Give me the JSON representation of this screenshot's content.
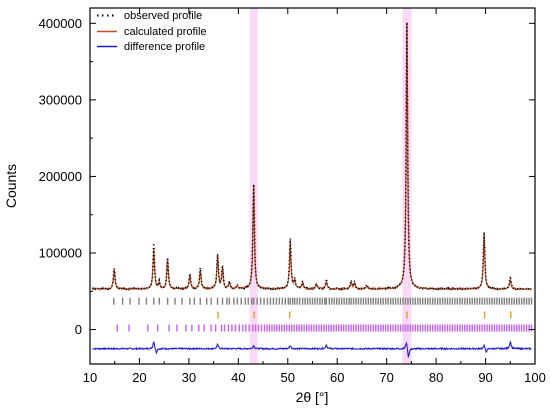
{
  "chart_data": {
    "type": "line",
    "title": "",
    "xlabel": "2θ [°]",
    "ylabel": "Counts",
    "xlim": [
      10,
      100
    ],
    "ylim": [
      -45000,
      420000
    ],
    "x_ticks": [
      10,
      20,
      30,
      40,
      50,
      60,
      70,
      80,
      90,
      100
    ],
    "x_tick_labels": [
      "10",
      "20",
      "30",
      "40",
      "50",
      "60",
      "70",
      "80",
      "90",
      "100"
    ],
    "y_ticks": [
      0,
      100000,
      200000,
      300000,
      400000
    ],
    "y_tick_labels": [
      "0",
      "100000",
      "200000",
      "300000",
      "400000"
    ],
    "grid": false,
    "legend_position": "top-left",
    "colors": {
      "observed": "#000000",
      "calculated": "#c0502a",
      "difference": "#1f1fd0",
      "reflections_phase1": "#808080",
      "reflections_phase2": "#e0a020",
      "reflections_phase3": "#c060f0",
      "highlight": "#f5b8f0"
    },
    "series": [
      {
        "name": "observed profile",
        "style": "dotted",
        "baseline": 53000,
        "peaks": [
          {
            "x": 14.9,
            "y": 80000
          },
          {
            "x": 22.9,
            "y": 112000
          },
          {
            "x": 24.0,
            "y": 62000
          },
          {
            "x": 25.7,
            "y": 93000
          },
          {
            "x": 30.2,
            "y": 72000
          },
          {
            "x": 32.3,
            "y": 80000
          },
          {
            "x": 35.8,
            "y": 98000
          },
          {
            "x": 36.8,
            "y": 82000
          },
          {
            "x": 38.2,
            "y": 62000
          },
          {
            "x": 39.8,
            "y": 58000
          },
          {
            "x": 43.1,
            "y": 190000
          },
          {
            "x": 50.5,
            "y": 118000
          },
          {
            "x": 51.4,
            "y": 65000
          },
          {
            "x": 53.0,
            "y": 62000
          },
          {
            "x": 55.8,
            "y": 60000
          },
          {
            "x": 57.8,
            "y": 67000
          },
          {
            "x": 62.8,
            "y": 64000
          },
          {
            "x": 63.5,
            "y": 62000
          },
          {
            "x": 66.0,
            "y": 58000
          },
          {
            "x": 74.1,
            "y": 402000
          },
          {
            "x": 89.7,
            "y": 127000
          },
          {
            "x": 95.0,
            "y": 70000
          }
        ]
      },
      {
        "name": "calculated profile",
        "style": "solid",
        "baseline": 53000,
        "peaks": [
          {
            "x": 14.9,
            "y": 79000
          },
          {
            "x": 22.9,
            "y": 105000
          },
          {
            "x": 24.0,
            "y": 61000
          },
          {
            "x": 25.7,
            "y": 92000
          },
          {
            "x": 30.2,
            "y": 71000
          },
          {
            "x": 32.3,
            "y": 79000
          },
          {
            "x": 35.8,
            "y": 97000
          },
          {
            "x": 36.8,
            "y": 81000
          },
          {
            "x": 38.2,
            "y": 61000
          },
          {
            "x": 39.8,
            "y": 57000
          },
          {
            "x": 43.1,
            "y": 189000
          },
          {
            "x": 50.5,
            "y": 117000
          },
          {
            "x": 51.4,
            "y": 64000
          },
          {
            "x": 53.0,
            "y": 61000
          },
          {
            "x": 55.8,
            "y": 59000
          },
          {
            "x": 57.8,
            "y": 63000
          },
          {
            "x": 62.8,
            "y": 61000
          },
          {
            "x": 63.5,
            "y": 60000
          },
          {
            "x": 66.0,
            "y": 57000
          },
          {
            "x": 74.1,
            "y": 400000
          },
          {
            "x": 89.7,
            "y": 126000
          },
          {
            "x": 95.0,
            "y": 66000
          }
        ]
      },
      {
        "name": "difference profile",
        "style": "solid",
        "baseline": -25000,
        "peaks": [
          {
            "x": 22.9,
            "y": -15000
          },
          {
            "x": 23.4,
            "y": -31000
          },
          {
            "x": 35.8,
            "y": -20000
          },
          {
            "x": 43.1,
            "y": -21000
          },
          {
            "x": 50.5,
            "y": -21000
          },
          {
            "x": 57.8,
            "y": -20000
          },
          {
            "x": 74.0,
            "y": -15000
          },
          {
            "x": 74.4,
            "y": -37000
          },
          {
            "x": 89.7,
            "y": -20000
          },
          {
            "x": 90.1,
            "y": -30000
          },
          {
            "x": 95.0,
            "y": -16000
          }
        ]
      }
    ],
    "reflection_rows": [
      {
        "y": 37000,
        "color_key": "reflections_phase1",
        "positions": [
          14.8,
          16.6,
          18.1,
          19.9,
          21.4,
          22.9,
          24.0,
          25.7,
          27.2,
          28.6,
          30.2,
          31.1,
          32.3,
          33.6,
          34.5,
          35.8,
          36.8,
          37.7,
          38.2,
          39.1,
          39.8,
          40.6,
          41.4,
          42.0,
          42.7,
          43.1,
          43.8,
          44.5,
          45.2,
          45.9,
          46.5,
          47.1,
          47.7,
          48.3,
          48.9,
          49.5,
          50.1,
          50.5,
          51.0,
          51.4,
          51.9,
          52.4,
          53.0,
          53.5,
          54.0,
          54.5,
          55.0,
          55.5,
          56.0,
          56.5,
          57.0,
          57.5,
          57.8,
          58.4,
          58.9,
          59.4,
          59.9,
          60.4,
          60.9,
          61.4,
          61.9,
          62.4,
          62.8,
          63.3,
          63.8,
          64.3,
          64.8,
          65.3,
          65.8,
          66.3,
          66.8,
          67.3,
          67.8,
          68.3,
          68.8,
          69.3,
          69.8,
          70.3,
          70.8,
          71.3,
          71.8,
          72.3,
          72.8,
          73.3,
          73.8,
          74.3,
          74.8,
          75.3,
          75.8,
          76.3,
          76.8,
          77.3,
          77.8,
          78.3,
          78.8,
          79.3,
          79.8,
          80.3,
          80.8,
          81.3,
          81.8,
          82.3,
          82.8,
          83.3,
          83.8,
          84.3,
          84.8,
          85.3,
          85.8,
          86.3,
          86.8,
          87.3,
          87.8,
          88.3,
          88.8,
          89.3,
          89.8,
          90.3,
          90.8,
          91.3,
          91.8,
          92.3,
          92.8,
          93.3,
          93.8,
          94.3,
          94.8,
          95.3,
          95.8,
          96.3,
          96.8,
          97.3,
          97.8,
          98.3,
          98.8,
          99.3
        ]
      },
      {
        "y": 19000,
        "color_key": "reflections_phase2",
        "positions": [
          35.9,
          43.2,
          50.4,
          74.1,
          89.8,
          95.1
        ]
      },
      {
        "y": 2000,
        "color_key": "reflections_phase3",
        "positions": [
          15.5,
          17.9,
          21.7,
          23.7,
          26.0,
          27.6,
          29.4,
          30.6,
          32.0,
          33.1,
          34.5,
          35.4,
          36.6,
          37.2,
          38.0,
          38.7,
          39.4,
          40.2,
          40.9,
          41.5,
          42.2,
          42.9,
          43.5,
          44.1,
          44.7,
          45.3,
          45.8,
          46.3,
          46.8,
          47.3,
          47.8,
          48.3,
          48.8,
          49.3,
          49.8,
          50.3,
          50.8,
          51.3,
          51.8,
          52.3,
          52.8,
          53.3,
          53.8,
          54.3,
          54.8,
          55.3,
          55.8,
          56.3,
          56.8,
          57.3,
          57.8,
          58.3,
          58.8,
          59.3,
          59.8,
          60.3,
          60.8,
          61.3,
          61.8,
          62.3,
          62.8,
          63.3,
          63.8,
          64.3,
          64.8,
          65.3,
          65.8,
          66.3,
          66.8,
          67.3,
          67.8,
          68.3,
          68.8,
          69.3,
          69.8,
          70.3,
          70.8,
          71.3,
          71.8,
          72.3,
          72.8,
          73.3,
          73.8,
          74.3,
          74.8,
          75.3,
          75.8,
          76.3,
          76.8,
          77.3,
          77.8,
          78.3,
          78.8,
          79.3,
          79.8,
          80.3,
          80.8,
          81.3,
          81.8,
          82.3,
          82.8,
          83.3,
          83.8,
          84.3,
          84.8,
          85.3,
          85.8,
          86.3,
          86.8,
          87.3,
          87.8,
          88.3,
          88.8,
          89.3,
          89.8,
          90.3,
          90.8,
          91.3,
          91.8,
          92.3,
          92.8,
          93.3,
          93.8,
          94.3,
          94.8,
          95.3,
          95.8,
          96.3,
          96.8,
          97.3,
          97.8,
          98.3,
          98.8,
          99.3
        ]
      }
    ],
    "highlight_bands": [
      {
        "x0": 42.3,
        "x1": 43.9
      },
      {
        "x0": 73.2,
        "x1": 75.0
      }
    ]
  }
}
